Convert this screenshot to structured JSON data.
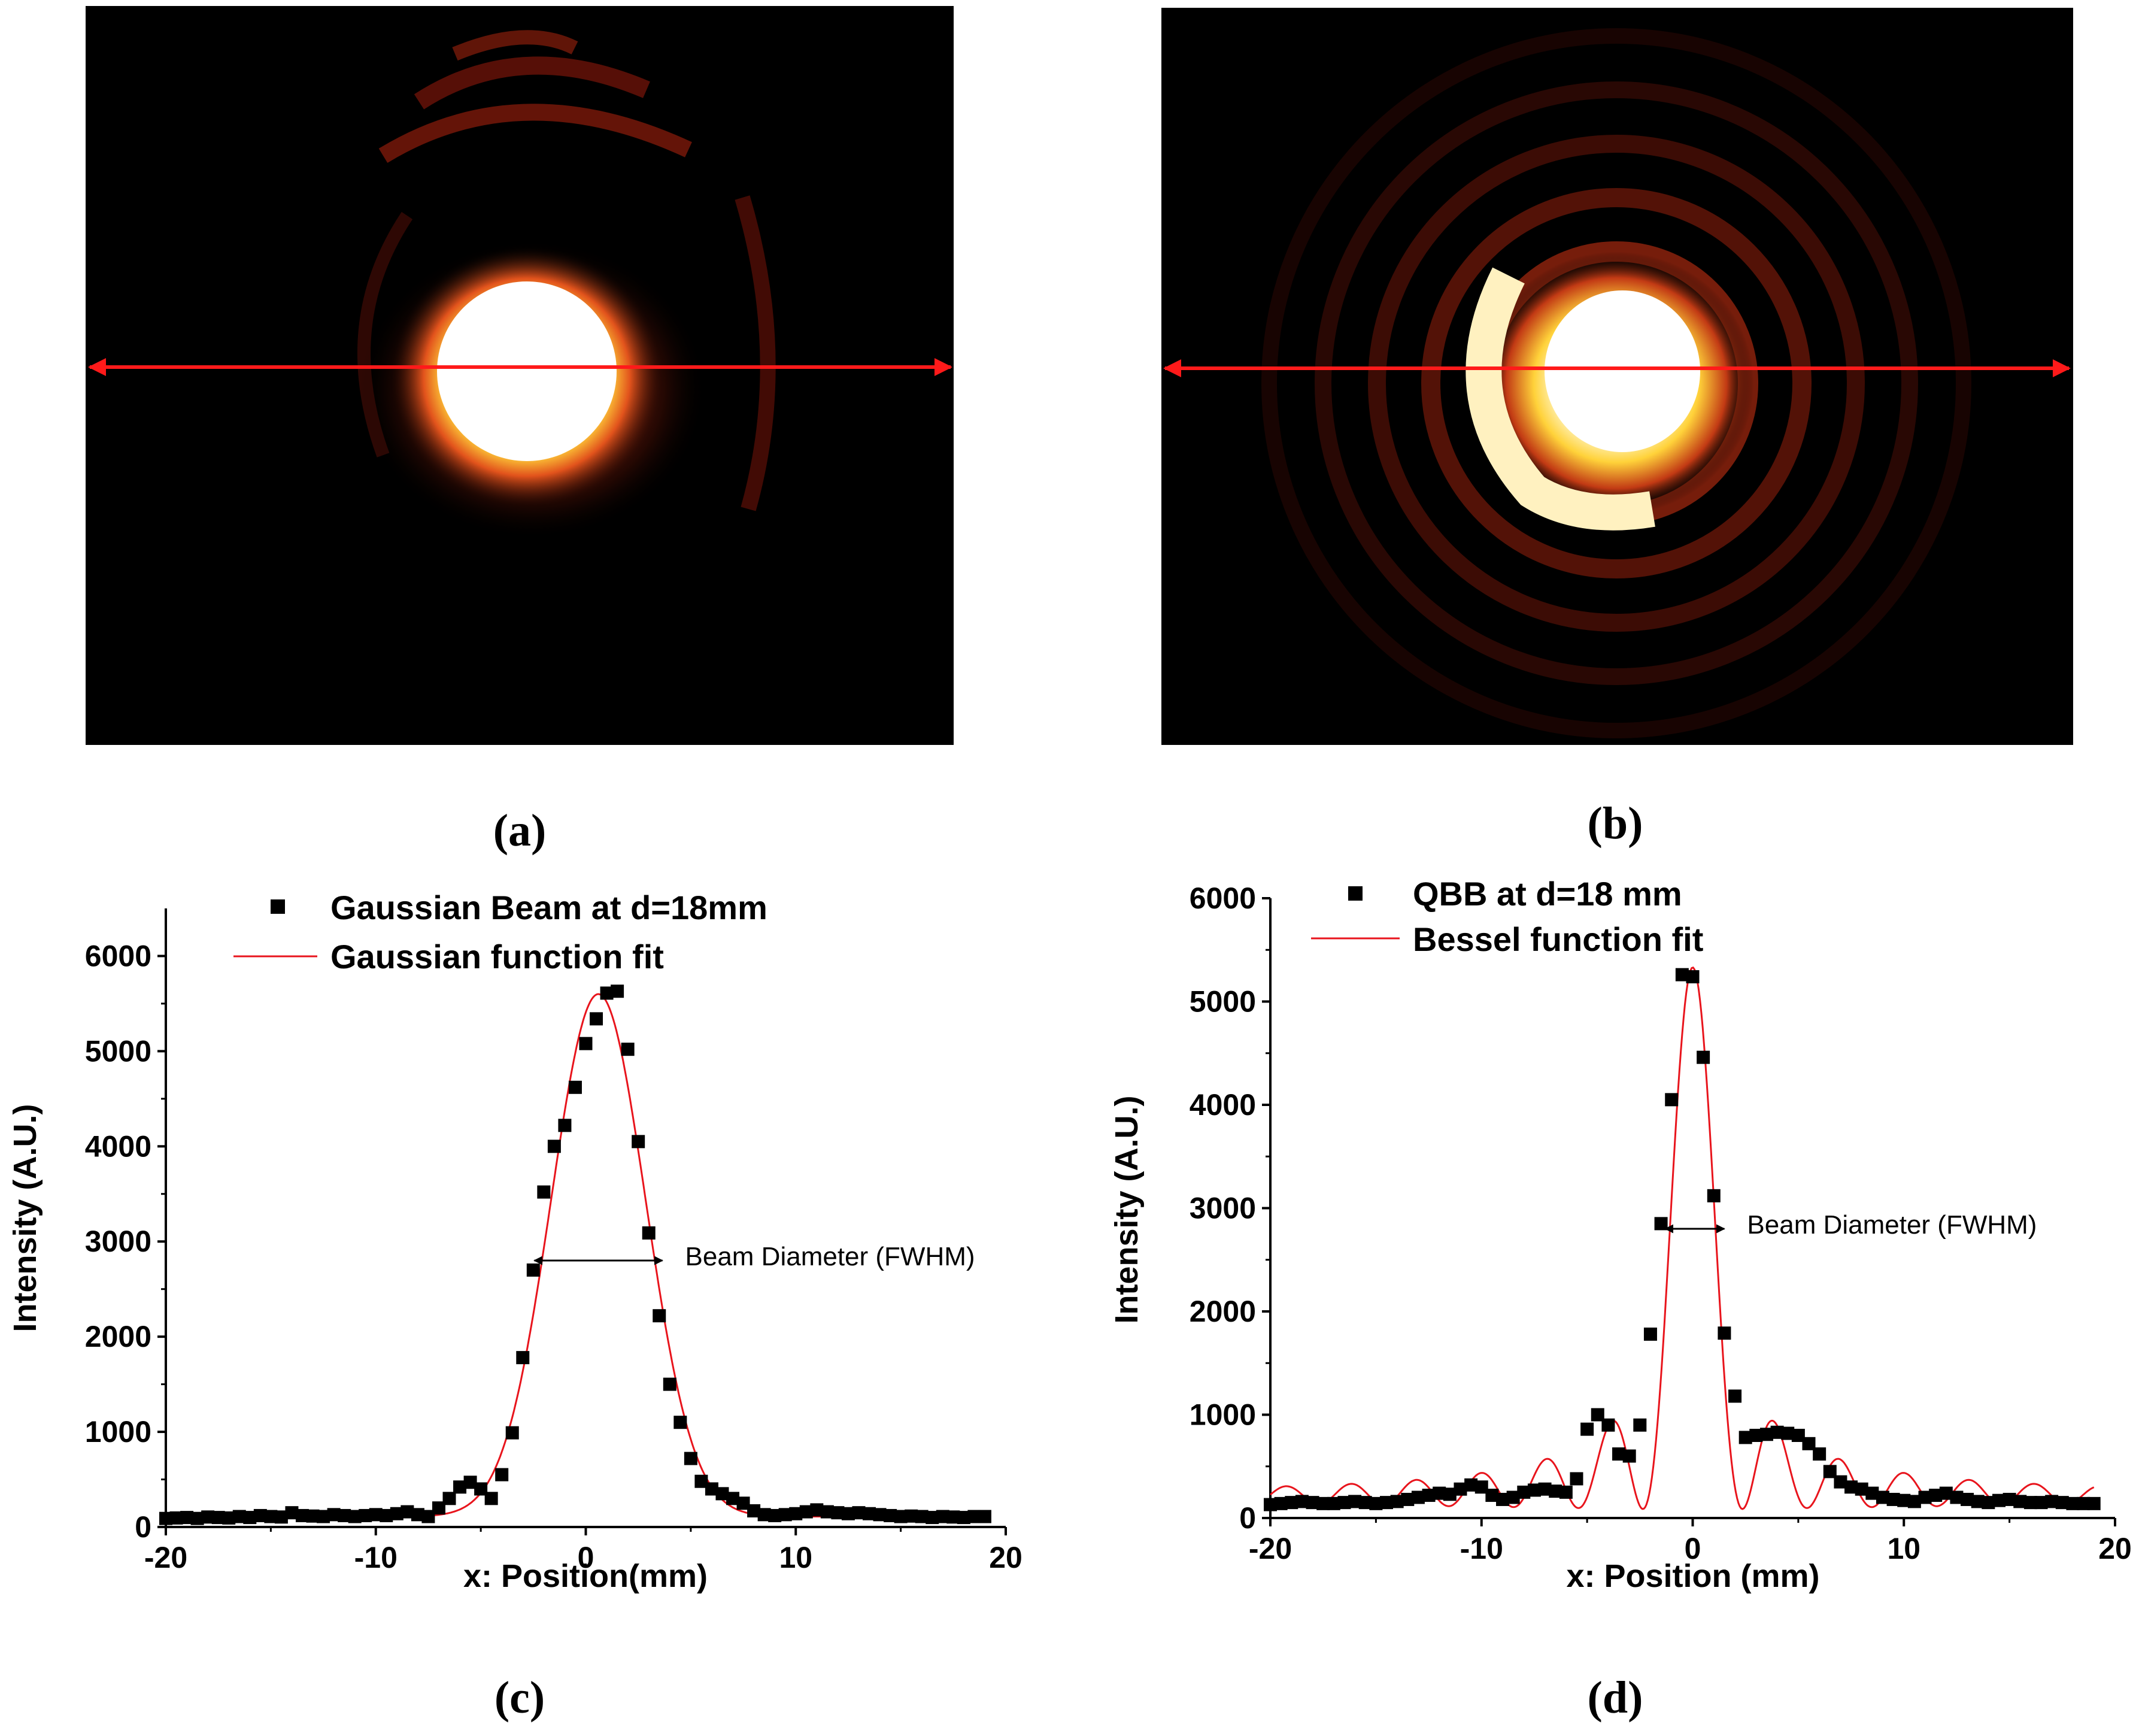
{
  "panels": {
    "a": {
      "label": "(a)"
    },
    "b": {
      "label": "(b)"
    },
    "c": {
      "label": "(c)"
    },
    "d": {
      "label": "(d)"
    }
  },
  "colors": {
    "data_marker": "#000000",
    "fit_line": "#e8141c",
    "arrow_line": "#ff1a1a",
    "image_bg": "#000000"
  },
  "chart_data": [
    {
      "id": "c",
      "type": "scatter",
      "title": "",
      "xlabel": "x: Position(mm)",
      "ylabel": "Intensity (A.U.)",
      "xlim": [
        -20,
        20
      ],
      "ylim": [
        0,
        6500
      ],
      "xticks": [
        -20,
        -10,
        0,
        10,
        20
      ],
      "yticks": [
        0,
        1000,
        2000,
        3000,
        4000,
        5000,
        6000
      ],
      "legend": {
        "placement": "top-center"
      },
      "series": [
        {
          "name": "Gaussian Beam at d=18mm",
          "kind": "markers",
          "x": [
            -20,
            -19.5,
            -19,
            -18.5,
            -18,
            -17.5,
            -17,
            -16.5,
            -16,
            -15.5,
            -15,
            -14.5,
            -14,
            -13.5,
            -13,
            -12.5,
            -12,
            -11.5,
            -11,
            -10.5,
            -10,
            -9.5,
            -9,
            -8.5,
            -8,
            -7.5,
            -7,
            -6.5,
            -6,
            -5.5,
            -5,
            -4.5,
            -4,
            -3.5,
            -3,
            -2.5,
            -2,
            -1.5,
            -1,
            -0.5,
            0,
            0.5,
            1,
            1.5,
            2,
            2.5,
            3,
            3.5,
            4,
            4.5,
            5,
            5.5,
            6,
            6.5,
            7,
            7.5,
            8,
            8.5,
            9,
            9.5,
            10,
            10.5,
            11,
            11.5,
            12,
            12.5,
            13,
            13.5,
            14,
            14.5,
            15,
            15.5,
            16,
            16.5,
            17,
            17.5,
            18,
            18.5,
            19
          ],
          "y": [
            90,
            95,
            100,
            90,
            105,
            100,
            95,
            110,
            100,
            120,
            110,
            105,
            150,
            120,
            115,
            110,
            130,
            120,
            110,
            120,
            130,
            120,
            140,
            160,
            130,
            110,
            200,
            300,
            420,
            470,
            400,
            300,
            550,
            990,
            1780,
            2700,
            3520,
            4000,
            4220,
            4620,
            5080,
            5340,
            5610,
            5630,
            5020,
            4050,
            3090,
            2220,
            1500,
            1100,
            720,
            480,
            400,
            350,
            300,
            250,
            170,
            130,
            120,
            130,
            140,
            160,
            180,
            160,
            150,
            140,
            150,
            140,
            130,
            120,
            110,
            115,
            110,
            100,
            110,
            105,
            100,
            110,
            110
          ]
        },
        {
          "name": "Gaussian function fit",
          "kind": "line",
          "model": "gaussian",
          "baseline": 110,
          "amplitude": 5490,
          "center": 0.6,
          "sigma": 2.25,
          "x_range": [
            -20,
            19
          ]
        }
      ],
      "annotation": {
        "text": "Beam Diameter (FWHM)",
        "arrow_from_x": -2.45,
        "arrow_to_x": 3.65,
        "arrow_y": 2800
      }
    },
    {
      "id": "d",
      "type": "scatter",
      "title": "",
      "xlabel": "x: Position (mm)",
      "ylabel": "Intensity (A.U.)",
      "xlim": [
        -20,
        20
      ],
      "ylim": [
        0,
        6000
      ],
      "xticks": [
        -20,
        -10,
        0,
        10,
        20
      ],
      "yticks": [
        0,
        1000,
        2000,
        3000,
        4000,
        5000,
        6000
      ],
      "legend": {
        "placement": "top-center"
      },
      "series": [
        {
          "name": "QBB at d=18 mm",
          "kind": "markers",
          "x": [
            -20,
            -19.5,
            -19,
            -18.5,
            -18,
            -17.5,
            -17,
            -16.5,
            -16,
            -15.5,
            -15,
            -14.5,
            -14,
            -13.5,
            -13,
            -12.5,
            -12,
            -11.5,
            -11,
            -10.5,
            -10,
            -9.5,
            -9,
            -8.5,
            -8,
            -7.5,
            -7,
            -6.5,
            -6,
            -5.5,
            -5,
            -4.5,
            -4,
            -3.5,
            -3,
            -2.5,
            -2,
            -1.5,
            -1,
            -0.5,
            0,
            0.5,
            1,
            1.5,
            2,
            2.5,
            3,
            3.5,
            4,
            4.5,
            5,
            5.5,
            6,
            6.5,
            7,
            7.5,
            8,
            8.5,
            9,
            9.5,
            10,
            10.5,
            11,
            11.5,
            12,
            12.5,
            13,
            13.5,
            14,
            14.5,
            15,
            15.5,
            16,
            16.5,
            17,
            17.5,
            18,
            18.5,
            19
          ],
          "y": [
            130,
            140,
            150,
            160,
            150,
            140,
            140,
            150,
            160,
            150,
            140,
            150,
            160,
            180,
            200,
            220,
            240,
            230,
            280,
            320,
            300,
            220,
            180,
            200,
            250,
            270,
            280,
            260,
            250,
            380,
            860,
            1000,
            900,
            620,
            600,
            900,
            1780,
            2850,
            4050,
            5260,
            5240,
            4460,
            3120,
            1790,
            1180,
            780,
            800,
            810,
            830,
            820,
            800,
            720,
            620,
            450,
            350,
            300,
            280,
            240,
            200,
            180,
            170,
            160,
            200,
            220,
            240,
            200,
            180,
            160,
            150,
            170,
            180,
            160,
            150,
            150,
            160,
            150,
            140,
            140,
            140
          ]
        },
        {
          "name": "Bessel function fit",
          "kind": "line",
          "model": "bessel-j0-squared-envelope",
          "baseline": 120,
          "amplitude": 5250,
          "center": 0.0,
          "k": 1.02,
          "x_range": [
            -20,
            19
          ]
        }
      ],
      "annotation": {
        "text": "Beam Diameter (FWHM)",
        "arrow_from_x": -1.3,
        "arrow_to_x": 1.5,
        "arrow_y": 2800
      }
    }
  ]
}
